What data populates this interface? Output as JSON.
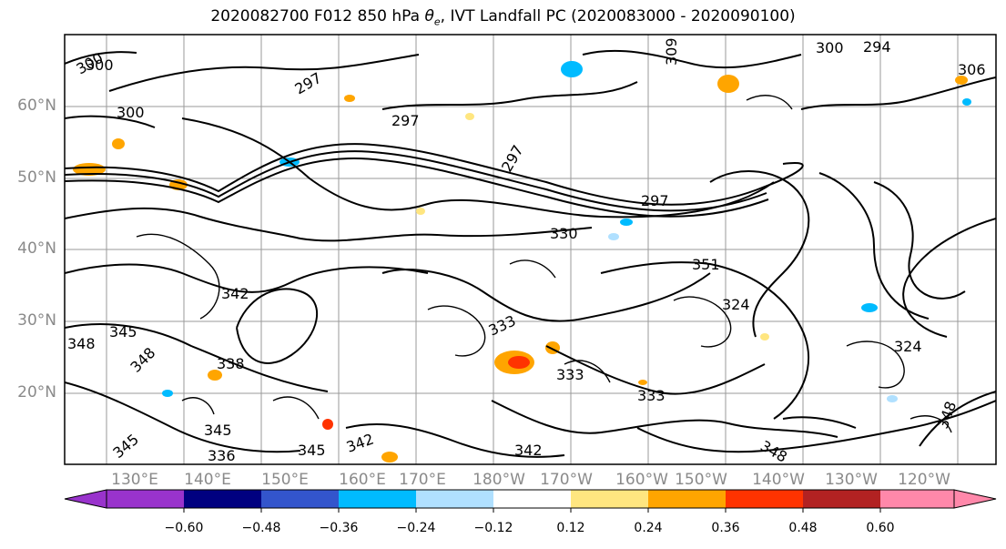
{
  "title": {
    "prefix": "2020082700 F012 850 hPa ",
    "theta_symbol": "θ",
    "theta_sub": "e",
    "suffix": ", IVT Landfall PC (2020083000 - 2020090100)"
  },
  "map": {
    "lat_labels": [
      "60°N",
      "50°N",
      "40°N",
      "30°N",
      "20°N"
    ],
    "lon_labels": [
      "130°E",
      "140°E",
      "150°E",
      "160°E",
      "170°E",
      "180°W",
      "170°W",
      "160°W",
      "150°W",
      "140°W",
      "130°W",
      "120°W"
    ],
    "contour_labels": [
      "300",
      "300",
      "297",
      "300",
      "297",
      "309",
      "300",
      "294",
      "297",
      "306",
      "297",
      "330",
      "342",
      "351",
      "324",
      "333",
      "345",
      "348",
      "348",
      "333",
      "338",
      "333",
      "345",
      "345",
      "342",
      "345",
      "342",
      "348",
      "324",
      "336",
      "348"
    ],
    "colors": {
      "coastline": "#000000",
      "grid": "#9a9a9a"
    }
  },
  "colorbar": {
    "tick_labels": [
      "−0.60",
      "−0.48",
      "−0.36",
      "−0.24",
      "−0.12",
      "0.12",
      "0.24",
      "0.36",
      "0.48",
      "0.60"
    ],
    "colors": [
      "#9933cc",
      "#000080",
      "#3355cc",
      "#00bbff",
      "#b0e0ff",
      "#ffffff",
      "#ffe680",
      "#ffa500",
      "#ff3300",
      "#b22222",
      "#ff88aa"
    ]
  }
}
